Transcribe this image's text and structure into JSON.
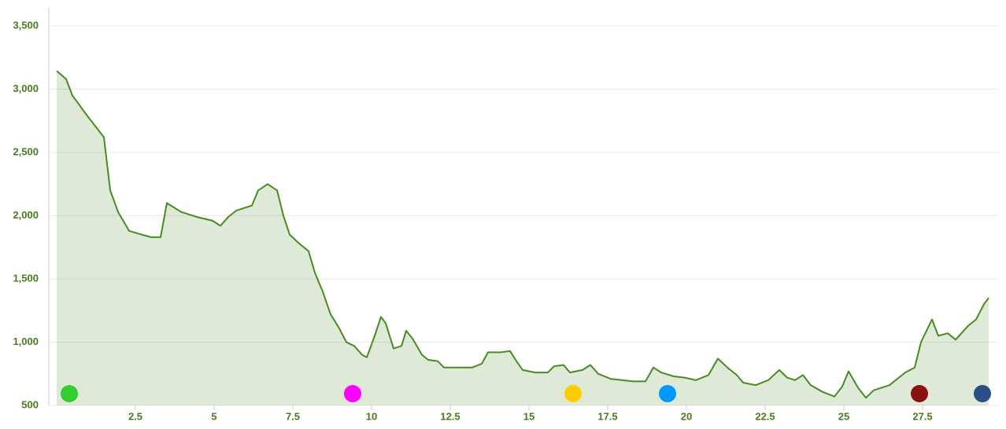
{
  "chart_data": {
    "type": "area",
    "x": [
      0,
      0.3,
      0.5,
      1.0,
      1.5,
      1.7,
      1.95,
      2.3,
      2.7,
      3.0,
      3.3,
      3.5,
      3.95,
      4.45,
      4.95,
      5.2,
      5.45,
      5.7,
      6.2,
      6.4,
      6.7,
      7.0,
      7.2,
      7.4,
      7.7,
      8.0,
      8.2,
      8.45,
      8.7,
      8.95,
      9.2,
      9.45,
      9.7,
      9.85,
      10.1,
      10.3,
      10.45,
      10.7,
      10.95,
      11.1,
      11.3,
      11.6,
      11.8,
      12.1,
      12.3,
      12.7,
      13.2,
      13.5,
      13.7,
      14.1,
      14.4,
      14.6,
      14.8,
      15.2,
      15.6,
      15.8,
      16.1,
      16.3,
      16.7,
      16.95,
      17.2,
      17.6,
      17.95,
      18.3,
      18.7,
      18.95,
      19.2,
      19.6,
      19.95,
      20.3,
      20.7,
      21.0,
      21.3,
      21.6,
      21.8,
      22.2,
      22.6,
      22.95,
      23.2,
      23.45,
      23.7,
      23.95,
      24.3,
      24.7,
      24.95,
      25.15,
      25.45,
      25.7,
      25.95,
      26.45,
      26.95,
      27.25,
      27.45,
      27.8,
      28.0,
      28.3,
      28.55,
      28.95,
      29.2,
      29.45,
      29.6
    ],
    "values": [
      3145,
      3080,
      2950,
      2780,
      2620,
      2200,
      2030,
      1880,
      1850,
      1830,
      1830,
      2100,
      2030,
      1990,
      1960,
      1920,
      1990,
      2040,
      2080,
      2200,
      2250,
      2200,
      2000,
      1850,
      1780,
      1720,
      1550,
      1400,
      1220,
      1120,
      1000,
      970,
      900,
      880,
      1050,
      1200,
      1150,
      950,
      970,
      1090,
      1030,
      900,
      860,
      850,
      800,
      800,
      800,
      830,
      920,
      920,
      930,
      850,
      780,
      760,
      760,
      810,
      820,
      760,
      780,
      820,
      750,
      710,
      700,
      690,
      690,
      800,
      760,
      730,
      720,
      700,
      740,
      870,
      800,
      740,
      680,
      660,
      700,
      780,
      720,
      700,
      740,
      660,
      610,
      570,
      650,
      770,
      640,
      560,
      620,
      660,
      760,
      800,
      1000,
      1180,
      1050,
      1070,
      1020,
      1130,
      1180,
      1300,
      1350
    ],
    "color": "#4a8a22",
    "markers": [
      {
        "x": 0.4,
        "color": "#33cc33"
      },
      {
        "x": 9.4,
        "color": "#ff00ff"
      },
      {
        "x": 16.4,
        "color": "#ffcc00"
      },
      {
        "x": 19.4,
        "color": "#0099ff"
      },
      {
        "x": 27.4,
        "color": "#8b1010"
      },
      {
        "x": 29.4,
        "color": "#2d4f86"
      }
    ],
    "xlim": [
      0,
      29.8
    ],
    "ylim": [
      500,
      3500
    ],
    "xticks": [
      2.5,
      5,
      7.5,
      10,
      12.5,
      15,
      17.5,
      20,
      22.5,
      25,
      27.5
    ],
    "yticks": [
      500,
      {
        "value": 1000,
        "label": "1,000"
      },
      {
        "value": 1500,
        "label": "1,500"
      },
      {
        "value": 2000,
        "label": "2,000"
      },
      {
        "value": 2500,
        "label": "2,500"
      },
      {
        "value": 3000,
        "label": "3,000"
      },
      {
        "value": 3500,
        "label": "3,500"
      }
    ],
    "grid": true
  }
}
